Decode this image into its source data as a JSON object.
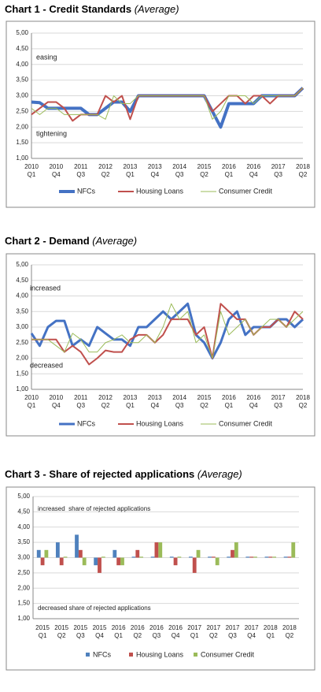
{
  "chart_data": [
    {
      "type": "line",
      "title": "Chart 1 - Credit Standards",
      "subtitle": "(Average)",
      "categories": [
        "2010 Q1",
        null,
        null,
        "2010 Q4",
        null,
        null,
        "2011 Q3",
        null,
        null,
        "2012 Q2",
        null,
        null,
        "2013 Q1",
        null,
        null,
        "2013 Q4",
        null,
        null,
        "2014 Q3",
        null,
        null,
        "2015 Q2",
        null,
        null,
        "2016 Q1",
        null,
        null,
        "2016 Q4",
        null,
        null,
        "2017 Q3",
        null,
        null,
        "2018 Q2"
      ],
      "series": [
        {
          "name": "NFCs",
          "color": "#4472c4",
          "line_width": 4,
          "values": [
            2.8,
            2.78,
            2.6,
            2.6,
            2.6,
            2.6,
            2.6,
            2.4,
            2.4,
            2.6,
            2.8,
            2.8,
            2.5,
            3,
            3,
            3,
            3,
            3,
            3,
            3,
            3,
            3,
            2.5,
            2.0,
            2.75,
            2.75,
            2.75,
            2.75,
            3,
            3,
            3,
            3,
            3,
            3.25
          ]
        },
        {
          "name": "Housing Loans",
          "color": "#c0504d",
          "line_width": 2,
          "values": [
            2.4,
            2.6,
            2.8,
            2.8,
            2.6,
            2.2,
            2.4,
            2.4,
            2.4,
            3,
            2.8,
            3,
            2.25,
            3,
            3,
            3,
            3,
            3,
            3,
            3,
            3,
            3,
            2.5,
            2.75,
            3,
            3,
            2.75,
            3,
            3,
            2.75,
            3,
            3,
            3,
            3.25
          ]
        },
        {
          "name": "Consumer Credit",
          "color": "#9bbb59",
          "line_width": 1,
          "values": [
            2.6,
            2.4,
            2.6,
            2.6,
            2.4,
            2.4,
            2.4,
            2.4,
            2.4,
            2.25,
            3,
            2.75,
            2.75,
            3,
            3,
            3,
            3,
            3,
            3,
            3,
            3,
            3,
            2.25,
            2.5,
            3,
            3,
            3,
            2.75,
            3,
            3,
            3,
            3,
            3,
            3.25
          ]
        }
      ],
      "ylim": [
        1,
        5
      ],
      "yticks": [
        {
          "value": 1,
          "label": "1,00"
        },
        {
          "value": 1.5,
          "label": "1,50"
        },
        {
          "value": 2,
          "label": "2,00"
        },
        {
          "value": 2.5,
          "label": "2,50"
        },
        {
          "value": 3,
          "label": "3,00"
        },
        {
          "value": 3.5,
          "label": "3,50"
        },
        {
          "value": 4,
          "label": "4,00"
        },
        {
          "value": 4.5,
          "label": "4,50"
        },
        {
          "value": 5,
          "label": "5,00"
        }
      ],
      "grid": true,
      "annotations": [
        "easing",
        "tightening"
      ]
    },
    {
      "type": "line",
      "title": "Chart 2 - Demand",
      "subtitle": "(Average)",
      "categories": [
        "2010 Q1",
        null,
        null,
        "2010 Q4",
        null,
        null,
        "2011 Q3",
        null,
        null,
        "2012 Q2",
        null,
        null,
        "2013 Q1",
        null,
        null,
        "2013 Q4",
        null,
        null,
        "2014 Q3",
        null,
        null,
        "2015 Q2",
        null,
        null,
        "2016 Q1",
        null,
        null,
        "2016 Q4",
        null,
        null,
        "2017 Q3",
        null,
        null,
        "2018 Q2"
      ],
      "series": [
        {
          "name": "NFCs",
          "color": "#4472c4",
          "line_width": 3,
          "values": [
            2.8,
            2.4,
            3,
            3.2,
            3.2,
            2.4,
            2.6,
            2.4,
            3,
            2.8,
            2.6,
            2.6,
            2.4,
            3,
            3,
            3.25,
            3.5,
            3.25,
            3.5,
            3.75,
            2.75,
            2.5,
            2,
            2.5,
            3.25,
            3.5,
            2.75,
            3,
            3,
            3,
            3.25,
            3.25,
            3,
            3.25
          ]
        },
        {
          "name": "Housing Loans",
          "color": "#c0504d",
          "line_width": 2,
          "values": [
            2.6,
            2.6,
            2.6,
            2.6,
            2.2,
            2.4,
            2.2,
            1.8,
            2,
            2.25,
            2.2,
            2.2,
            2.6,
            2.75,
            2.75,
            2.5,
            2.75,
            3.25,
            3.25,
            3.25,
            2.75,
            3,
            2,
            3.75,
            3.5,
            3.25,
            3.25,
            2.75,
            3,
            3,
            3.25,
            3,
            3.5,
            3.25
          ]
        },
        {
          "name": "Consumer Credit",
          "color": "#9bbb59",
          "line_width": 1,
          "values": [
            2.6,
            2.6,
            2.6,
            2.4,
            2.2,
            2.8,
            2.6,
            2.2,
            2.2,
            2.5,
            2.6,
            2.75,
            2.5,
            2.5,
            2.75,
            2.5,
            3,
            3.75,
            3.25,
            3.5,
            2.5,
            2.75,
            2,
            3.5,
            2.75,
            3,
            3.25,
            2.75,
            3,
            3.25,
            3.25,
            3,
            3.25,
            3.5
          ]
        }
      ],
      "ylim": [
        1,
        5
      ],
      "yticks": [
        {
          "value": 1,
          "label": "1,00"
        },
        {
          "value": 1.5,
          "label": "1,50"
        },
        {
          "value": 2,
          "label": "2,00"
        },
        {
          "value": 2.5,
          "label": "2,50"
        },
        {
          "value": 3,
          "label": "3,00"
        },
        {
          "value": 3.5,
          "label": "3,50"
        },
        {
          "value": 4,
          "label": "4,00"
        },
        {
          "value": 4.5,
          "label": "4,50"
        },
        {
          "value": 5,
          "label": "5,00"
        }
      ],
      "grid": true,
      "annotations": [
        "increased",
        "decreased"
      ]
    },
    {
      "type": "bar",
      "title": "Chart 3 - Share of rejected applications",
      "subtitle": "(Average)",
      "categories": [
        "2015 Q1",
        "2015 Q2",
        "2015 Q3",
        "2015 Q4",
        "2016 Q1",
        "2016 Q2",
        "2016 Q3",
        "2016 Q4",
        "2017 Q1",
        "2017 Q2",
        "2017 Q3",
        "2017 Q4",
        "2018 Q1",
        "2018 Q2"
      ],
      "series": [
        {
          "name": "NFCs",
          "color": "#4f81bd",
          "values": [
            3.25,
            3.5,
            3.75,
            2.75,
            3.25,
            3.03,
            3.03,
            3.03,
            3.03,
            3.03,
            3.03,
            3.03,
            3.03,
            3.03
          ]
        },
        {
          "name": "Housing Loans",
          "color": "#c0504d",
          "values": [
            2.75,
            2.75,
            3.25,
            2.5,
            2.75,
            3.25,
            3.5,
            2.75,
            2.5,
            3.03,
            3.25,
            3.03,
            3.03,
            3.03
          ]
        },
        {
          "name": "Consumer Credit",
          "color": "#9bbb59",
          "values": [
            3.25,
            3.03,
            2.75,
            3.03,
            2.75,
            3.03,
            3.5,
            3.03,
            3.25,
            2.75,
            3.5,
            3.03,
            3.03,
            3.5
          ]
        }
      ],
      "bar_base": 3,
      "ylim": [
        1,
        5
      ],
      "yticks": [
        {
          "value": 1,
          "label": "1,00"
        },
        {
          "value": 1.5,
          "label": "1,50"
        },
        {
          "value": 2,
          "label": "2,00"
        },
        {
          "value": 2.5,
          "label": "2,50"
        },
        {
          "value": 3,
          "label": "3,00"
        },
        {
          "value": 3.5,
          "label": "3,50"
        },
        {
          "value": 4,
          "label": "4,00"
        },
        {
          "value": 4.5,
          "label": "4,50"
        },
        {
          "value": 5,
          "label": "5,00"
        }
      ],
      "grid": true,
      "annotations": [
        "increased  share of rejected applications",
        "decreased share of rejected applications"
      ]
    }
  ]
}
